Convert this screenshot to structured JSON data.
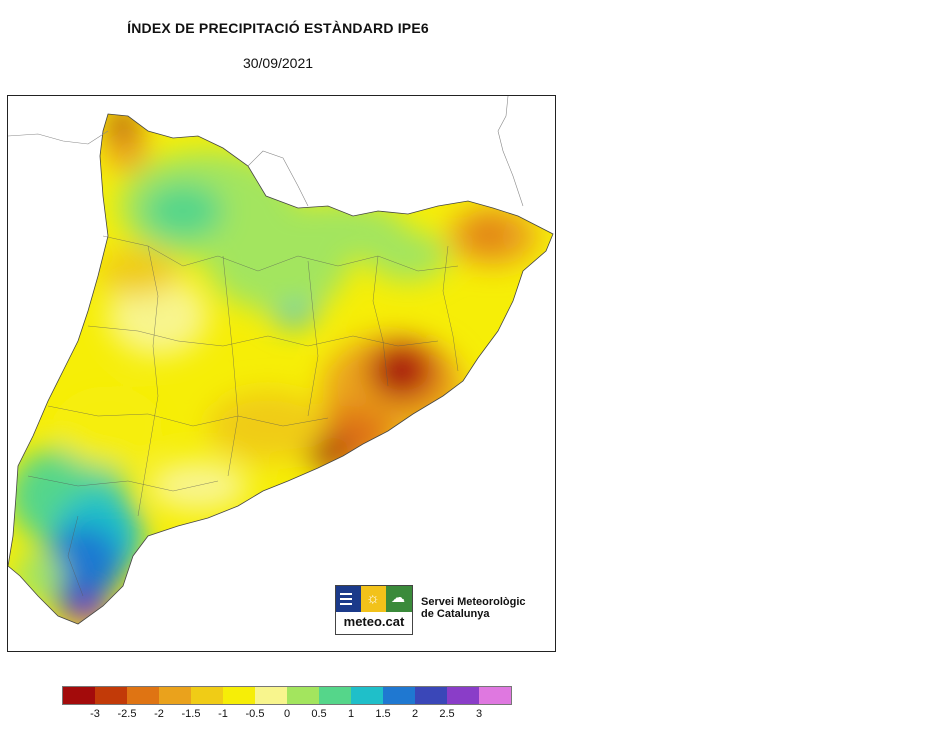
{
  "title": "ÍNDEX DE PRECIPITACIÓ ESTÀNDARD IPE6",
  "date": "30/09/2021",
  "logo": {
    "brand": "meteo.cat",
    "org_line1": "Servei Meteorològic",
    "org_line2": "de Catalunya"
  },
  "legend": {
    "colors": [
      "#a30b0b",
      "#c23a08",
      "#df7413",
      "#eaa21c",
      "#f0cc16",
      "#f6ee07",
      "#f8f58d",
      "#a3e55e",
      "#55d68a",
      "#1fbfc9",
      "#1f78d1",
      "#3a47b8",
      "#8a3dc8",
      "#df78e0"
    ],
    "ticks": [
      "-3",
      "-2.5",
      "-2",
      "-1.5",
      "-1",
      "-0.5",
      "0",
      "0.5",
      "1",
      "1.5",
      "2",
      "2.5",
      "3"
    ]
  },
  "map_regions": {
    "lowest": "#a30b0b",
    "very_low": "#c23a08",
    "low": "#df7413",
    "moderately_low": "#eaa21c",
    "slightly_low": "#f0cc16",
    "near_normal_dry": "#f6ee07",
    "near_normal": "#f8f58d",
    "slightly_wet": "#a3e55e",
    "moderately_wet": "#55d68a",
    "wet": "#1fbfc9",
    "very_wet": "#1f78d1",
    "extremely_wet": "#3a47b8",
    "extreme": "#8a3dc8"
  }
}
